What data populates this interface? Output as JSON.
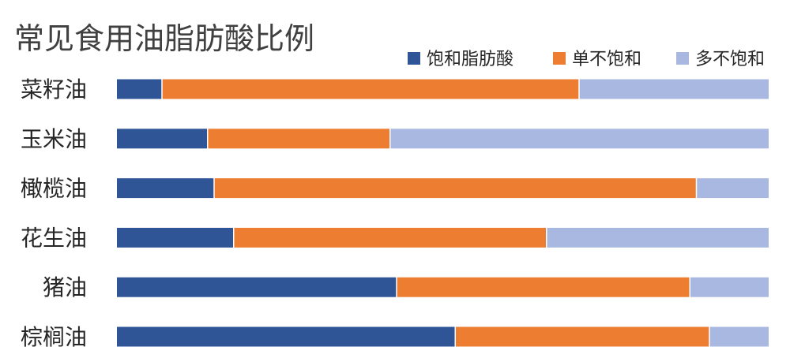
{
  "chart_data": {
    "type": "bar",
    "orientation": "horizontal",
    "stacked": "percent",
    "title": "常见食用油脂肪酸比例",
    "categories": [
      "菜籽油",
      "玉米油",
      "橄榄油",
      "花生油",
      "猪油",
      "棕榈油"
    ],
    "series": [
      {
        "name": "饱和脂肪酸",
        "color": "#2f5597",
        "values": [
          7,
          14,
          15,
          18,
          43,
          52
        ]
      },
      {
        "name": "单不饱和",
        "color": "#ed7d31",
        "values": [
          64,
          28,
          74,
          48,
          45,
          39
        ]
      },
      {
        "name": "多不饱和",
        "color": "#a9b8e0",
        "values": [
          29,
          58,
          11,
          34,
          12,
          9
        ]
      }
    ],
    "xlim": [
      0,
      100
    ],
    "legend_position": "top-right",
    "grid": false
  }
}
